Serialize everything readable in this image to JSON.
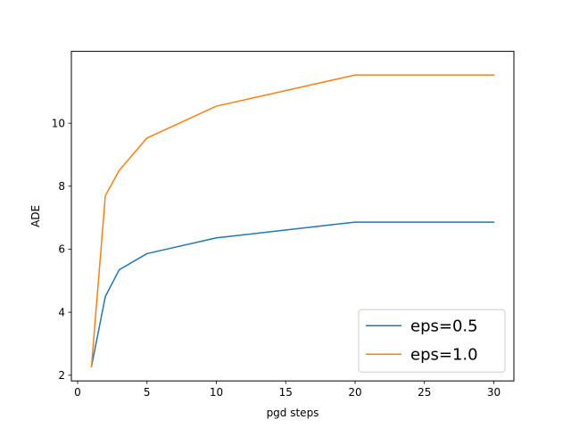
{
  "chart_data": {
    "type": "line",
    "title": "",
    "xlabel": "pgd steps",
    "ylabel": "ADE",
    "xlim": [
      -0.45,
      31.45
    ],
    "ylim": [
      1.82,
      12.28
    ],
    "xticks": [
      0,
      5,
      10,
      15,
      20,
      25,
      30
    ],
    "yticks": [
      2,
      4,
      6,
      8,
      10
    ],
    "grid": false,
    "legend_position": "bottom-right",
    "x": [
      1,
      2,
      3,
      5,
      10,
      20,
      30
    ],
    "series": [
      {
        "name": "eps=0.5",
        "color": "#1f77b4",
        "values": [
          2.28,
          4.5,
          5.35,
          5.86,
          6.36,
          6.86,
          6.86
        ]
      },
      {
        "name": "eps=1.0",
        "color": "#ff7f0e",
        "values": [
          2.28,
          7.7,
          8.5,
          9.53,
          10.54,
          11.53,
          11.53
        ]
      }
    ]
  }
}
